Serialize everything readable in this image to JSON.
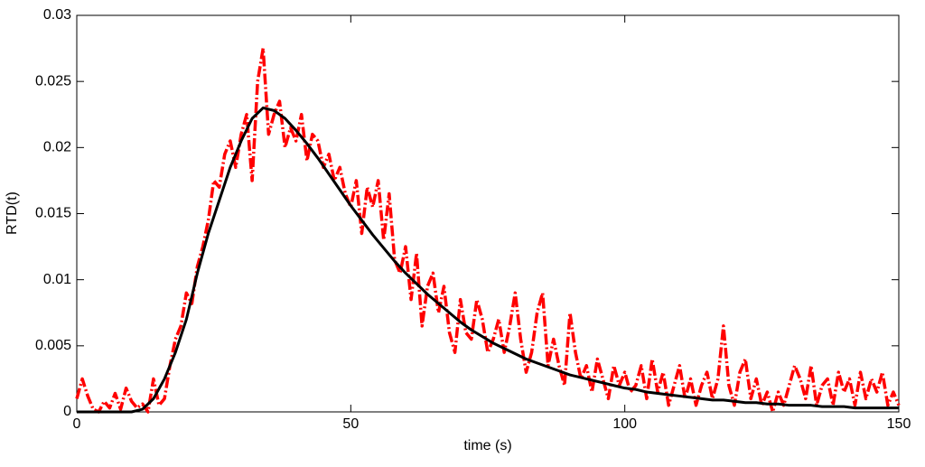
{
  "chart_data": {
    "type": "line",
    "xlabel": "time (s)",
    "ylabel": "RTD(t)",
    "xlim": [
      0,
      150
    ],
    "ylim": [
      0,
      0.03
    ],
    "xticks": [
      0,
      50,
      100,
      150
    ],
    "yticks": [
      0,
      0.005,
      0.01,
      0.015,
      0.02,
      0.025,
      0.03
    ],
    "grid": false,
    "series": [
      {
        "color": "#ff0000",
        "linestyle": "-.",
        "x": [
          0,
          1,
          2,
          3,
          4,
          5,
          6,
          7,
          8,
          9,
          10,
          11,
          12,
          13,
          14,
          15,
          16,
          17,
          18,
          19,
          20,
          21,
          22,
          23,
          24,
          25,
          26,
          27,
          28,
          29,
          30,
          31,
          32,
          33,
          34,
          35,
          36,
          37,
          38,
          39,
          40,
          41,
          42,
          43,
          44,
          45,
          46,
          47,
          48,
          49,
          50,
          51,
          52,
          53,
          54,
          55,
          56,
          57,
          58,
          59,
          60,
          61,
          62,
          63,
          64,
          65,
          66,
          67,
          68,
          69,
          70,
          71,
          72,
          73,
          74,
          75,
          76,
          77,
          78,
          79,
          80,
          81,
          82,
          83,
          84,
          85,
          86,
          87,
          88,
          89,
          90,
          91,
          92,
          93,
          94,
          95,
          96,
          97,
          98,
          99,
          100,
          101,
          102,
          103,
          104,
          105,
          106,
          107,
          108,
          109,
          110,
          111,
          112,
          113,
          114,
          115,
          116,
          117,
          118,
          119,
          120,
          121,
          122,
          123,
          124,
          125,
          126,
          127,
          128,
          129,
          130,
          131,
          132,
          133,
          134,
          135,
          136,
          137,
          138,
          139,
          140,
          141,
          142,
          143,
          144,
          145,
          146,
          147,
          148,
          149,
          150
        ],
        "values": [
          0.001,
          0.0025,
          0.0012,
          0.0002,
          0,
          0.0008,
          0.0003,
          0.0014,
          0.0002,
          0.0018,
          0.0008,
          0.0003,
          0.0006,
          0,
          0.0025,
          0.0005,
          0.001,
          0.0035,
          0.0055,
          0.0065,
          0.009,
          0.0082,
          0.011,
          0.0125,
          0.0145,
          0.0175,
          0.017,
          0.0195,
          0.0205,
          0.0185,
          0.021,
          0.0225,
          0.0175,
          0.025,
          0.0275,
          0.021,
          0.0225,
          0.0235,
          0.02,
          0.0215,
          0.0205,
          0.0225,
          0.019,
          0.021,
          0.0205,
          0.0185,
          0.0195,
          0.0175,
          0.0185,
          0.0165,
          0.0155,
          0.0175,
          0.0135,
          0.017,
          0.0155,
          0.0175,
          0.013,
          0.0165,
          0.0115,
          0.0105,
          0.0125,
          0.0085,
          0.012,
          0.0065,
          0.0095,
          0.0105,
          0.0075,
          0.0095,
          0.006,
          0.0045,
          0.0085,
          0.006,
          0.0055,
          0.0085,
          0.007,
          0.0045,
          0.0055,
          0.007,
          0.0045,
          0.0065,
          0.009,
          0.0055,
          0.003,
          0.0045,
          0.0075,
          0.009,
          0.0035,
          0.0055,
          0.0035,
          0.002,
          0.0075,
          0.0045,
          0.0025,
          0.0035,
          0.0015,
          0.004,
          0.0025,
          0.001,
          0.0035,
          0.002,
          0.003,
          0.0015,
          0.002,
          0.0035,
          0.001,
          0.004,
          0.0015,
          0.003,
          0.0005,
          0.002,
          0.0035,
          0.001,
          0.0025,
          0.0005,
          0.002,
          0.003,
          0.001,
          0.0025,
          0.0065,
          0.002,
          0.0005,
          0.003,
          0.004,
          0.001,
          0.0025,
          0.0005,
          0.0015,
          0,
          0.0015,
          0.0005,
          0.002,
          0.0035,
          0.0025,
          0.001,
          0.0035,
          0.0005,
          0.002,
          0.0025,
          0.0005,
          0.003,
          0.0015,
          0.0025,
          0.0005,
          0.003,
          0.001,
          0.0025,
          0.0015,
          0.003,
          0.0005,
          0.0015,
          0.0005
        ]
      },
      {
        "color": "#000000",
        "linestyle": "-",
        "x": [
          0,
          2,
          4,
          6,
          8,
          10,
          12,
          14,
          16,
          18,
          20,
          22,
          24,
          26,
          28,
          30,
          32,
          34,
          36,
          38,
          40,
          42,
          44,
          46,
          48,
          50,
          52,
          54,
          56,
          58,
          60,
          62,
          64,
          66,
          68,
          70,
          72,
          74,
          76,
          78,
          80,
          82,
          84,
          86,
          88,
          90,
          92,
          94,
          96,
          98,
          100,
          102,
          104,
          106,
          108,
          110,
          112,
          114,
          116,
          118,
          120,
          122,
          124,
          126,
          128,
          130,
          132,
          134,
          136,
          138,
          140,
          142,
          144,
          146,
          148,
          150
        ],
        "values": [
          0,
          0,
          0,
          0,
          0,
          0,
          0.0002,
          0.001,
          0.0025,
          0.0045,
          0.007,
          0.0105,
          0.0135,
          0.016,
          0.0185,
          0.0205,
          0.0222,
          0.023,
          0.0228,
          0.0222,
          0.0213,
          0.0203,
          0.0192,
          0.018,
          0.0168,
          0.0156,
          0.0145,
          0.0134,
          0.0124,
          0.0114,
          0.0105,
          0.0097,
          0.0089,
          0.0082,
          0.0075,
          0.0068,
          0.0062,
          0.0057,
          0.0052,
          0.0048,
          0.0044,
          0.004,
          0.0037,
          0.0034,
          0.0031,
          0.0028,
          0.0026,
          0.0024,
          0.0022,
          0.002,
          0.0018,
          0.0017,
          0.0015,
          0.0014,
          0.0013,
          0.0012,
          0.0011,
          0.001,
          0.0009,
          0.0009,
          0.0008,
          0.0007,
          0.0007,
          0.0006,
          0.0006,
          0.0005,
          0.0005,
          0.0005,
          0.0004,
          0.0004,
          0.0004,
          0.0003,
          0.0003,
          0.0003,
          0.0003,
          0.0003
        ]
      }
    ]
  }
}
